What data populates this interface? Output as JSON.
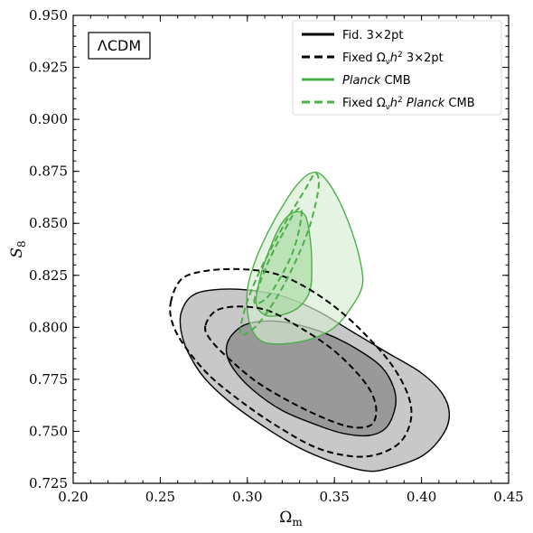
{
  "chart_data": {
    "type": "contour",
    "xlabel": "Ω",
    "xlabel_sub": "m",
    "ylabel": "S",
    "ylabel_sub": "8",
    "xlim": [
      0.2,
      0.45
    ],
    "ylim": [
      0.725,
      0.95
    ],
    "xticks": [
      "0.20",
      "0.25",
      "0.30",
      "0.35",
      "0.40",
      "0.45"
    ],
    "yticks": [
      "0.725",
      "0.750",
      "0.775",
      "0.800",
      "0.825",
      "0.850",
      "0.875",
      "0.900",
      "0.925",
      "0.950"
    ],
    "model_label": "ΛCDM",
    "legend_position": "top-right",
    "colors": {
      "black": "#000000",
      "green": "#4daf4a",
      "grey_outer": "#c8c8c8",
      "grey_inner": "#999999",
      "green_outer": "#d6ecd3",
      "green_inner": "#a6d9a0"
    },
    "series": [
      {
        "name": "Fid. 3×2pt",
        "style": "solid",
        "color": "#000000",
        "contours": [
          {
            "level": "outer",
            "fill": "#c8c8c8",
            "points": [
              [
                0.262,
                0.807
              ],
              [
                0.268,
                0.815
              ],
              [
                0.28,
                0.818
              ],
              [
                0.3,
                0.818
              ],
              [
                0.32,
                0.815
              ],
              [
                0.34,
                0.808
              ],
              [
                0.36,
                0.798
              ],
              [
                0.38,
                0.788
              ],
              [
                0.4,
                0.778
              ],
              [
                0.412,
                0.768
              ],
              [
                0.416,
                0.758
              ],
              [
                0.412,
                0.748
              ],
              [
                0.4,
                0.738
              ],
              [
                0.38,
                0.732
              ],
              [
                0.368,
                0.731
              ],
              [
                0.35,
                0.735
              ],
              [
                0.33,
                0.742
              ],
              [
                0.31,
                0.752
              ],
              [
                0.29,
                0.764
              ],
              [
                0.275,
                0.776
              ],
              [
                0.266,
                0.788
              ],
              [
                0.262,
                0.798
              ]
            ]
          },
          {
            "level": "inner",
            "fill": "#999999",
            "points": [
              [
                0.29,
                0.795
              ],
              [
                0.298,
                0.801
              ],
              [
                0.31,
                0.803
              ],
              [
                0.325,
                0.802
              ],
              [
                0.345,
                0.797
              ],
              [
                0.362,
                0.79
              ],
              [
                0.377,
                0.781
              ],
              [
                0.384,
                0.771
              ],
              [
                0.385,
                0.762
              ],
              [
                0.38,
                0.752
              ],
              [
                0.37,
                0.748
              ],
              [
                0.355,
                0.749
              ],
              [
                0.34,
                0.753
              ],
              [
                0.32,
                0.76
              ],
              [
                0.303,
                0.77
              ],
              [
                0.292,
                0.78
              ],
              [
                0.288,
                0.788
              ]
            ]
          }
        ]
      },
      {
        "name": "Fixed Ω_νh² 3×2pt",
        "style": "dashed",
        "color": "#000000",
        "contours": [
          {
            "level": "outer",
            "points": [
              [
                0.256,
                0.812
              ],
              [
                0.262,
                0.823
              ],
              [
                0.275,
                0.827
              ],
              [
                0.295,
                0.828
              ],
              [
                0.315,
                0.826
              ],
              [
                0.332,
                0.82
              ],
              [
                0.35,
                0.81
              ],
              [
                0.366,
                0.798
              ],
              [
                0.382,
                0.783
              ],
              [
                0.392,
                0.768
              ],
              [
                0.394,
                0.756
              ],
              [
                0.388,
                0.745
              ],
              [
                0.375,
                0.739
              ],
              [
                0.36,
                0.738
              ],
              [
                0.34,
                0.742
              ],
              [
                0.318,
                0.752
              ],
              [
                0.297,
                0.764
              ],
              [
                0.278,
                0.777
              ],
              [
                0.264,
                0.791
              ],
              [
                0.257,
                0.802
              ]
            ]
          },
          {
            "level": "inner",
            "points": [
              [
                0.276,
                0.801
              ],
              [
                0.282,
                0.808
              ],
              [
                0.295,
                0.81
              ],
              [
                0.312,
                0.808
              ],
              [
                0.33,
                0.8
              ],
              [
                0.348,
                0.79
              ],
              [
                0.362,
                0.779
              ],
              [
                0.371,
                0.769
              ],
              [
                0.374,
                0.76
              ],
              [
                0.371,
                0.753
              ],
              [
                0.36,
                0.752
              ],
              [
                0.345,
                0.756
              ],
              [
                0.325,
                0.764
              ],
              [
                0.305,
                0.774
              ],
              [
                0.288,
                0.786
              ],
              [
                0.278,
                0.795
              ]
            ]
          }
        ]
      },
      {
        "name": "Planck CMB",
        "style": "solid",
        "color": "#4daf4a",
        "contours": [
          {
            "level": "outer",
            "fill": "#d6ecd3",
            "points": [
              [
                0.3,
                0.818
              ],
              [
                0.305,
                0.833
              ],
              [
                0.312,
                0.846
              ],
              [
                0.32,
                0.858
              ],
              [
                0.328,
                0.868
              ],
              [
                0.336,
                0.874
              ],
              [
                0.343,
                0.873
              ],
              [
                0.352,
                0.862
              ],
              [
                0.36,
                0.846
              ],
              [
                0.365,
                0.831
              ],
              [
                0.366,
                0.82
              ],
              [
                0.36,
                0.81
              ],
              [
                0.35,
                0.8
              ],
              [
                0.335,
                0.794
              ],
              [
                0.318,
                0.792
              ],
              [
                0.307,
                0.794
              ],
              [
                0.301,
                0.803
              ]
            ]
          },
          {
            "level": "inner",
            "fill": "#a6d9a0",
            "points": [
              [
                0.305,
                0.812
              ],
              [
                0.308,
                0.826
              ],
              [
                0.313,
                0.838
              ],
              [
                0.319,
                0.849
              ],
              [
                0.326,
                0.855
              ],
              [
                0.333,
                0.854
              ],
              [
                0.336,
                0.843
              ],
              [
                0.337,
                0.83
              ],
              [
                0.336,
                0.818
              ],
              [
                0.33,
                0.81
              ],
              [
                0.32,
                0.806
              ],
              [
                0.31,
                0.806
              ]
            ]
          }
        ]
      },
      {
        "name": "Fixed Ω_νh² Planck CMB",
        "style": "dashed",
        "color": "#4daf4a",
        "contours": [
          {
            "level": "outer",
            "points": [
              [
                0.296,
                0.797
              ],
              [
                0.299,
                0.81
              ],
              [
                0.306,
                0.825
              ],
              [
                0.315,
                0.84
              ],
              [
                0.325,
                0.855
              ],
              [
                0.333,
                0.866
              ],
              [
                0.339,
                0.874
              ],
              [
                0.341,
                0.868
              ],
              [
                0.337,
                0.852
              ],
              [
                0.331,
                0.838
              ],
              [
                0.322,
                0.822
              ],
              [
                0.312,
                0.808
              ],
              [
                0.303,
                0.799
              ]
            ]
          },
          {
            "level": "inner",
            "points": [
              [
                0.304,
                0.812
              ],
              [
                0.308,
                0.823
              ],
              [
                0.314,
                0.835
              ],
              [
                0.321,
                0.846
              ],
              [
                0.327,
                0.855
              ],
              [
                0.331,
                0.857
              ],
              [
                0.33,
                0.848
              ],
              [
                0.326,
                0.836
              ],
              [
                0.319,
                0.824
              ],
              [
                0.311,
                0.814
              ]
            ]
          }
        ]
      }
    ]
  }
}
